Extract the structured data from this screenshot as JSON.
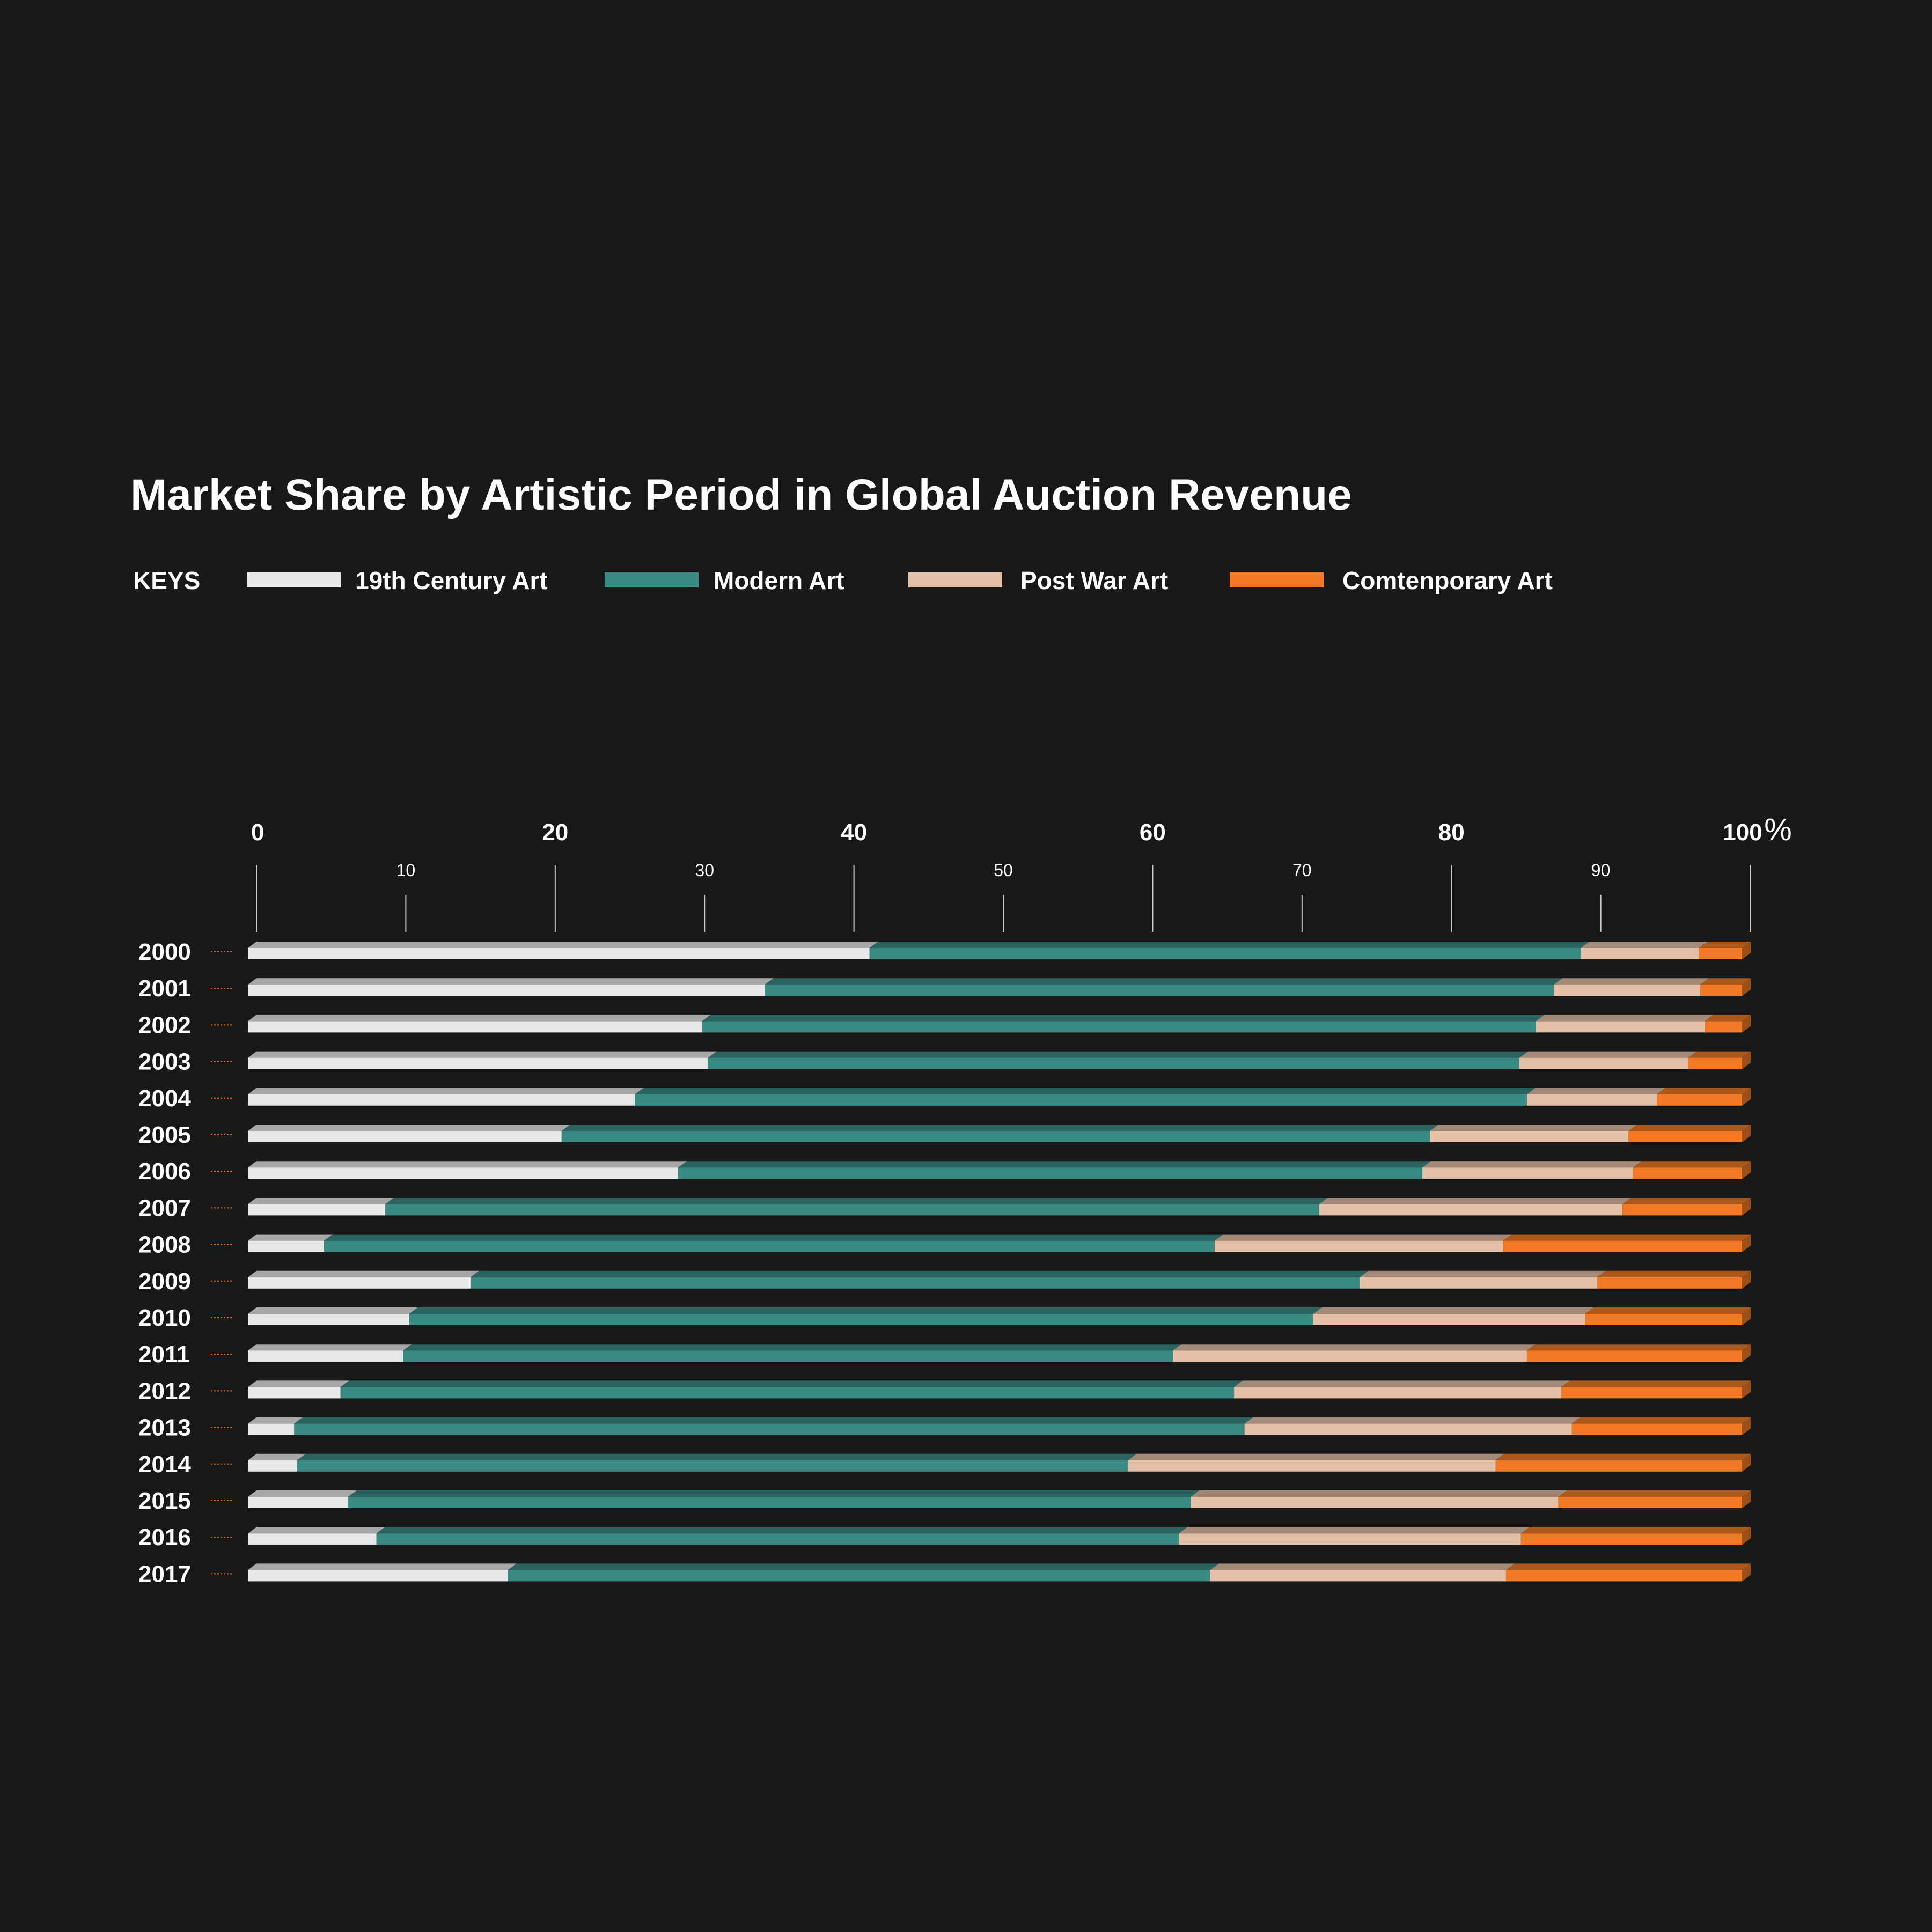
{
  "chart_data": {
    "type": "bar",
    "orientation": "horizontal",
    "stacked": true,
    "title": "Market Share by Artistic Period in Global Auction Revenue",
    "legend_heading": "KEYS",
    "legend_position": "top-left",
    "unit_label": "%",
    "xlim": [
      0,
      100
    ],
    "major_ticks": [
      "0",
      "20",
      "40",
      "60",
      "80",
      "100"
    ],
    "minor_ticks": [
      "10",
      "30",
      "50",
      "70",
      "90"
    ],
    "categories": [
      "2000",
      "2001",
      "2002",
      "2003",
      "2004",
      "2005",
      "2006",
      "2007",
      "2008",
      "2009",
      "2010",
      "2011",
      "2012",
      "2013",
      "2014",
      "2015",
      "2016",
      "2017"
    ],
    "series": [
      {
        "name": "19th Century Art",
        "color": "#e8e8e8",
        "values": [
          41.6,
          34.6,
          30.4,
          30.8,
          25.9,
          21.0,
          28.8,
          9.2,
          5.1,
          14.9,
          10.8,
          10.4,
          6.2,
          3.1,
          3.3,
          6.7,
          8.6,
          17.4
        ]
      },
      {
        "name": "Modern Art",
        "color": "#3a8a84",
        "values": [
          47.6,
          52.8,
          55.8,
          54.3,
          59.7,
          58.1,
          49.8,
          62.5,
          59.6,
          59.5,
          60.5,
          51.5,
          59.8,
          63.6,
          55.6,
          56.4,
          53.7,
          47.0
        ]
      },
      {
        "name": "Post War Art",
        "color": "#e3c0a7",
        "values": [
          7.9,
          9.8,
          11.3,
          11.3,
          8.7,
          13.3,
          14.1,
          20.3,
          19.3,
          15.9,
          18.2,
          23.7,
          21.9,
          21.9,
          24.6,
          24.6,
          22.9,
          19.8
        ]
      },
      {
        "name": "Comtenporary Art",
        "color": "#f07a25",
        "values": [
          2.9,
          2.8,
          2.5,
          3.6,
          5.7,
          7.6,
          7.3,
          8.0,
          16.0,
          9.7,
          10.5,
          14.4,
          12.1,
          11.4,
          16.5,
          12.3,
          14.8,
          15.8
        ]
      }
    ]
  }
}
